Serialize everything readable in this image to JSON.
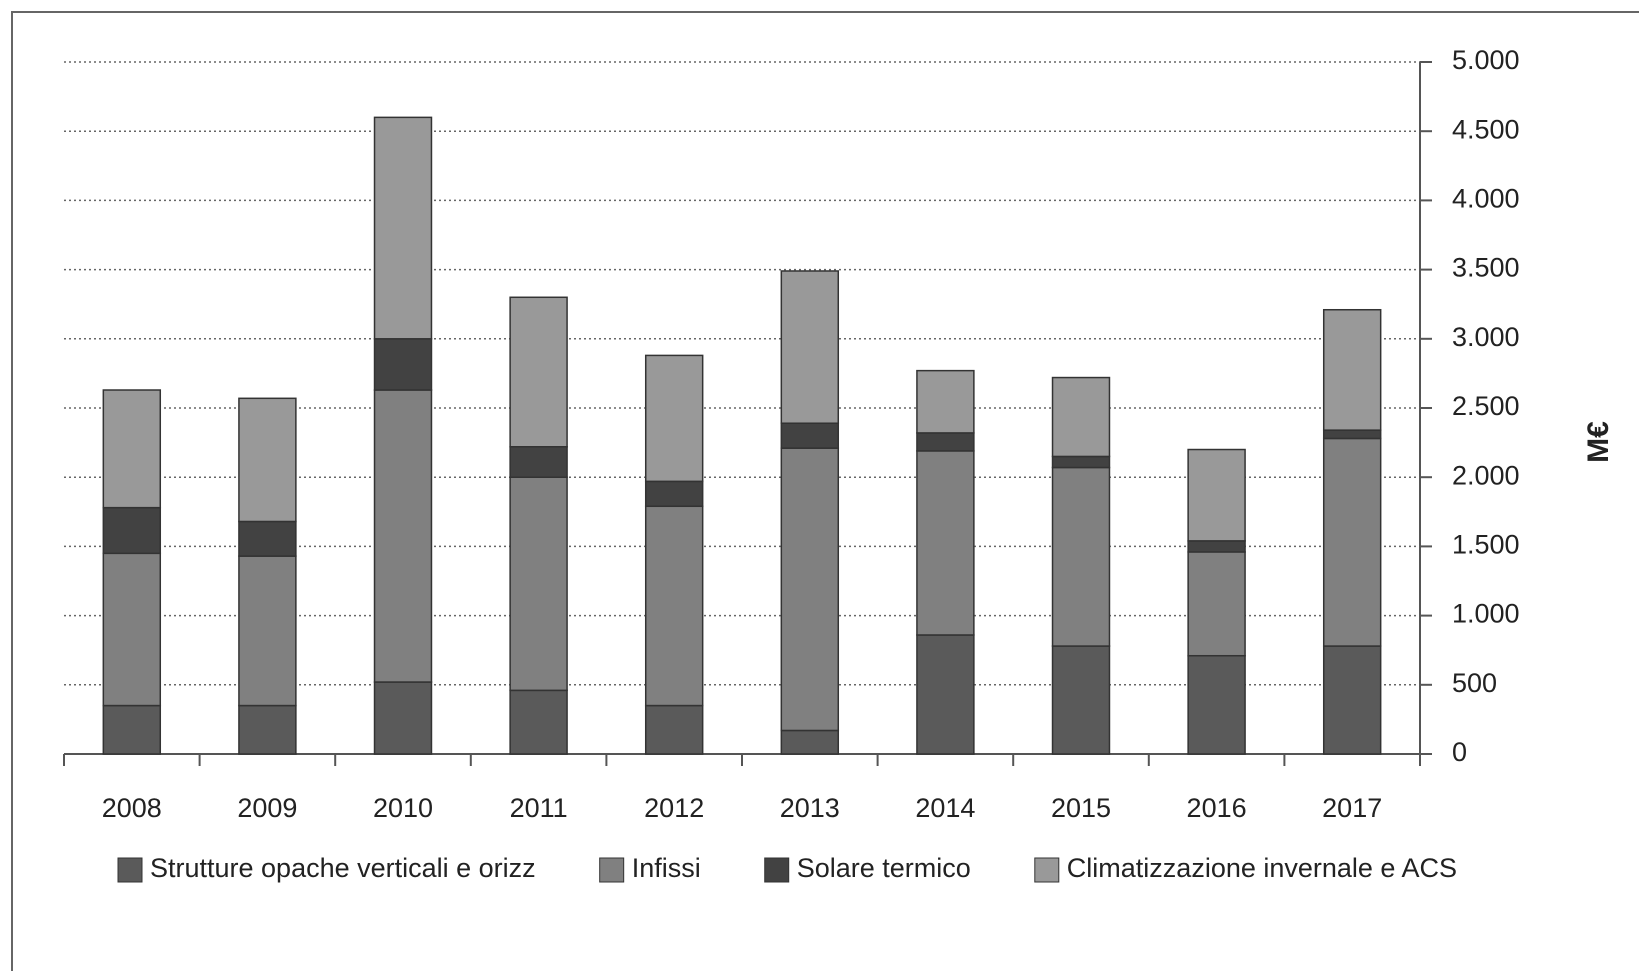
{
  "chart_data": {
    "type": "stacked_bar",
    "y_label": "M€",
    "categories": [
      "2008",
      "2009",
      "2010",
      "2011",
      "2012",
      "2013",
      "2014",
      "2015",
      "2016",
      "2017"
    ],
    "series": [
      {
        "name": "Strutture opache verticali e orizz",
        "color": "#5a5a5a",
        "values": [
          350,
          350,
          520,
          460,
          350,
          170,
          860,
          780,
          710,
          780
        ]
      },
      {
        "name": "Infissi",
        "color": "#808080",
        "values": [
          1100,
          1080,
          2110,
          1540,
          1440,
          2040,
          1330,
          1290,
          750,
          1500
        ]
      },
      {
        "name": "Solare termico",
        "color": "#424242",
        "values": [
          330,
          250,
          370,
          220,
          180,
          180,
          130,
          80,
          80,
          60
        ]
      },
      {
        "name": "Climatizzazione invernale e ACS",
        "color": "#999999",
        "values": [
          850,
          890,
          1600,
          1080,
          910,
          1100,
          450,
          570,
          660,
          870
        ]
      }
    ],
    "ylim": [
      0,
      5000
    ],
    "yticks": [
      0,
      500,
      {
        "value": 1000,
        "label": "1.000"
      },
      {
        "value": 1500,
        "label": "1.500"
      },
      {
        "value": 2000,
        "label": "2.000"
      },
      {
        "value": 2500,
        "label": "2.500"
      },
      {
        "value": 3000,
        "label": "3.000"
      },
      {
        "value": 3500,
        "label": "3.500"
      },
      {
        "value": 4000,
        "label": "4.000"
      },
      {
        "value": 4500,
        "label": "4.500"
      },
      {
        "value": 5000,
        "label": "5.000"
      }
    ],
    "grid": true,
    "y_axis_side": "right",
    "legend": "bottom"
  }
}
